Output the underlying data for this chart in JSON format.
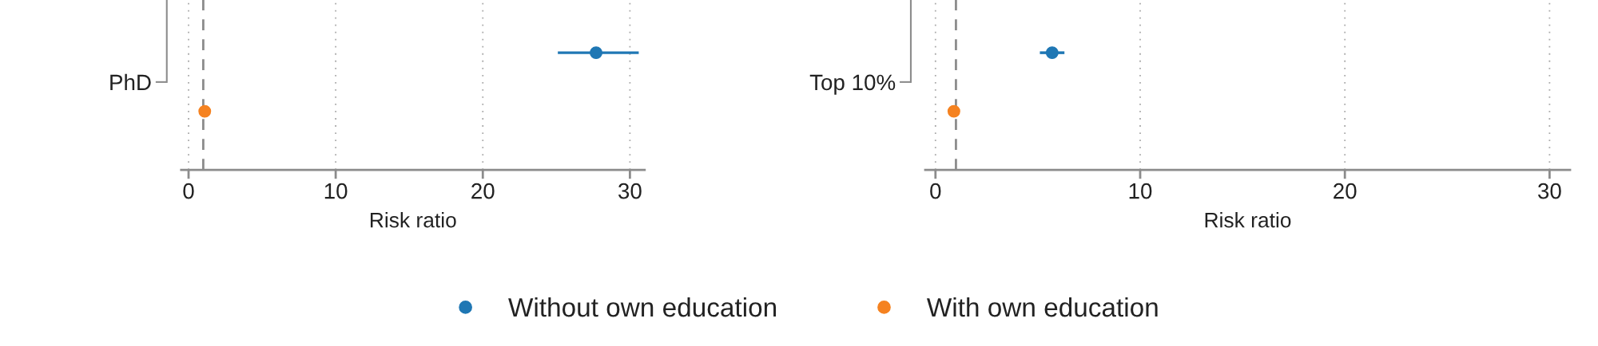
{
  "chart_data": [
    {
      "type": "scatter",
      "orientation": "horizontal",
      "categories": [
        "PhD"
      ],
      "xlabel": "Risk ratio",
      "xlim": [
        -0.5,
        31
      ],
      "xticks": [
        0,
        10,
        20,
        30
      ],
      "grid": "x",
      "legend": "bottom",
      "marker": "circle",
      "ref_lines": [
        {
          "axis": "x",
          "value": 1,
          "color": "#8c8c8c",
          "line_style": "dashed"
        }
      ],
      "series": [
        {
          "name": "Without own education",
          "color": "#1f77b4",
          "values": [
            27.7
          ],
          "errors": [
            [
              25.1,
              30.6
            ]
          ]
        },
        {
          "name": "With own education",
          "color": "#f58220",
          "values": [
            1.1
          ],
          "errors": [
            null
          ]
        }
      ]
    },
    {
      "type": "scatter",
      "orientation": "horizontal",
      "categories": [
        "Top 10%"
      ],
      "xlabel": "Risk ratio",
      "xlim": [
        -0.5,
        31
      ],
      "xticks": [
        0,
        10,
        20,
        30
      ],
      "grid": "x",
      "marker": "circle",
      "ref_lines": [
        {
          "axis": "x",
          "value": 1,
          "color": "#8c8c8c",
          "line_style": "dashed"
        }
      ],
      "series": [
        {
          "name": "Without own education",
          "color": "#1f77b4",
          "values": [
            5.7
          ],
          "errors": [
            [
              5.1,
              6.3
            ]
          ]
        },
        {
          "name": "With own education",
          "color": "#f58220",
          "values": [
            0.9
          ],
          "errors": [
            null
          ]
        }
      ]
    }
  ]
}
